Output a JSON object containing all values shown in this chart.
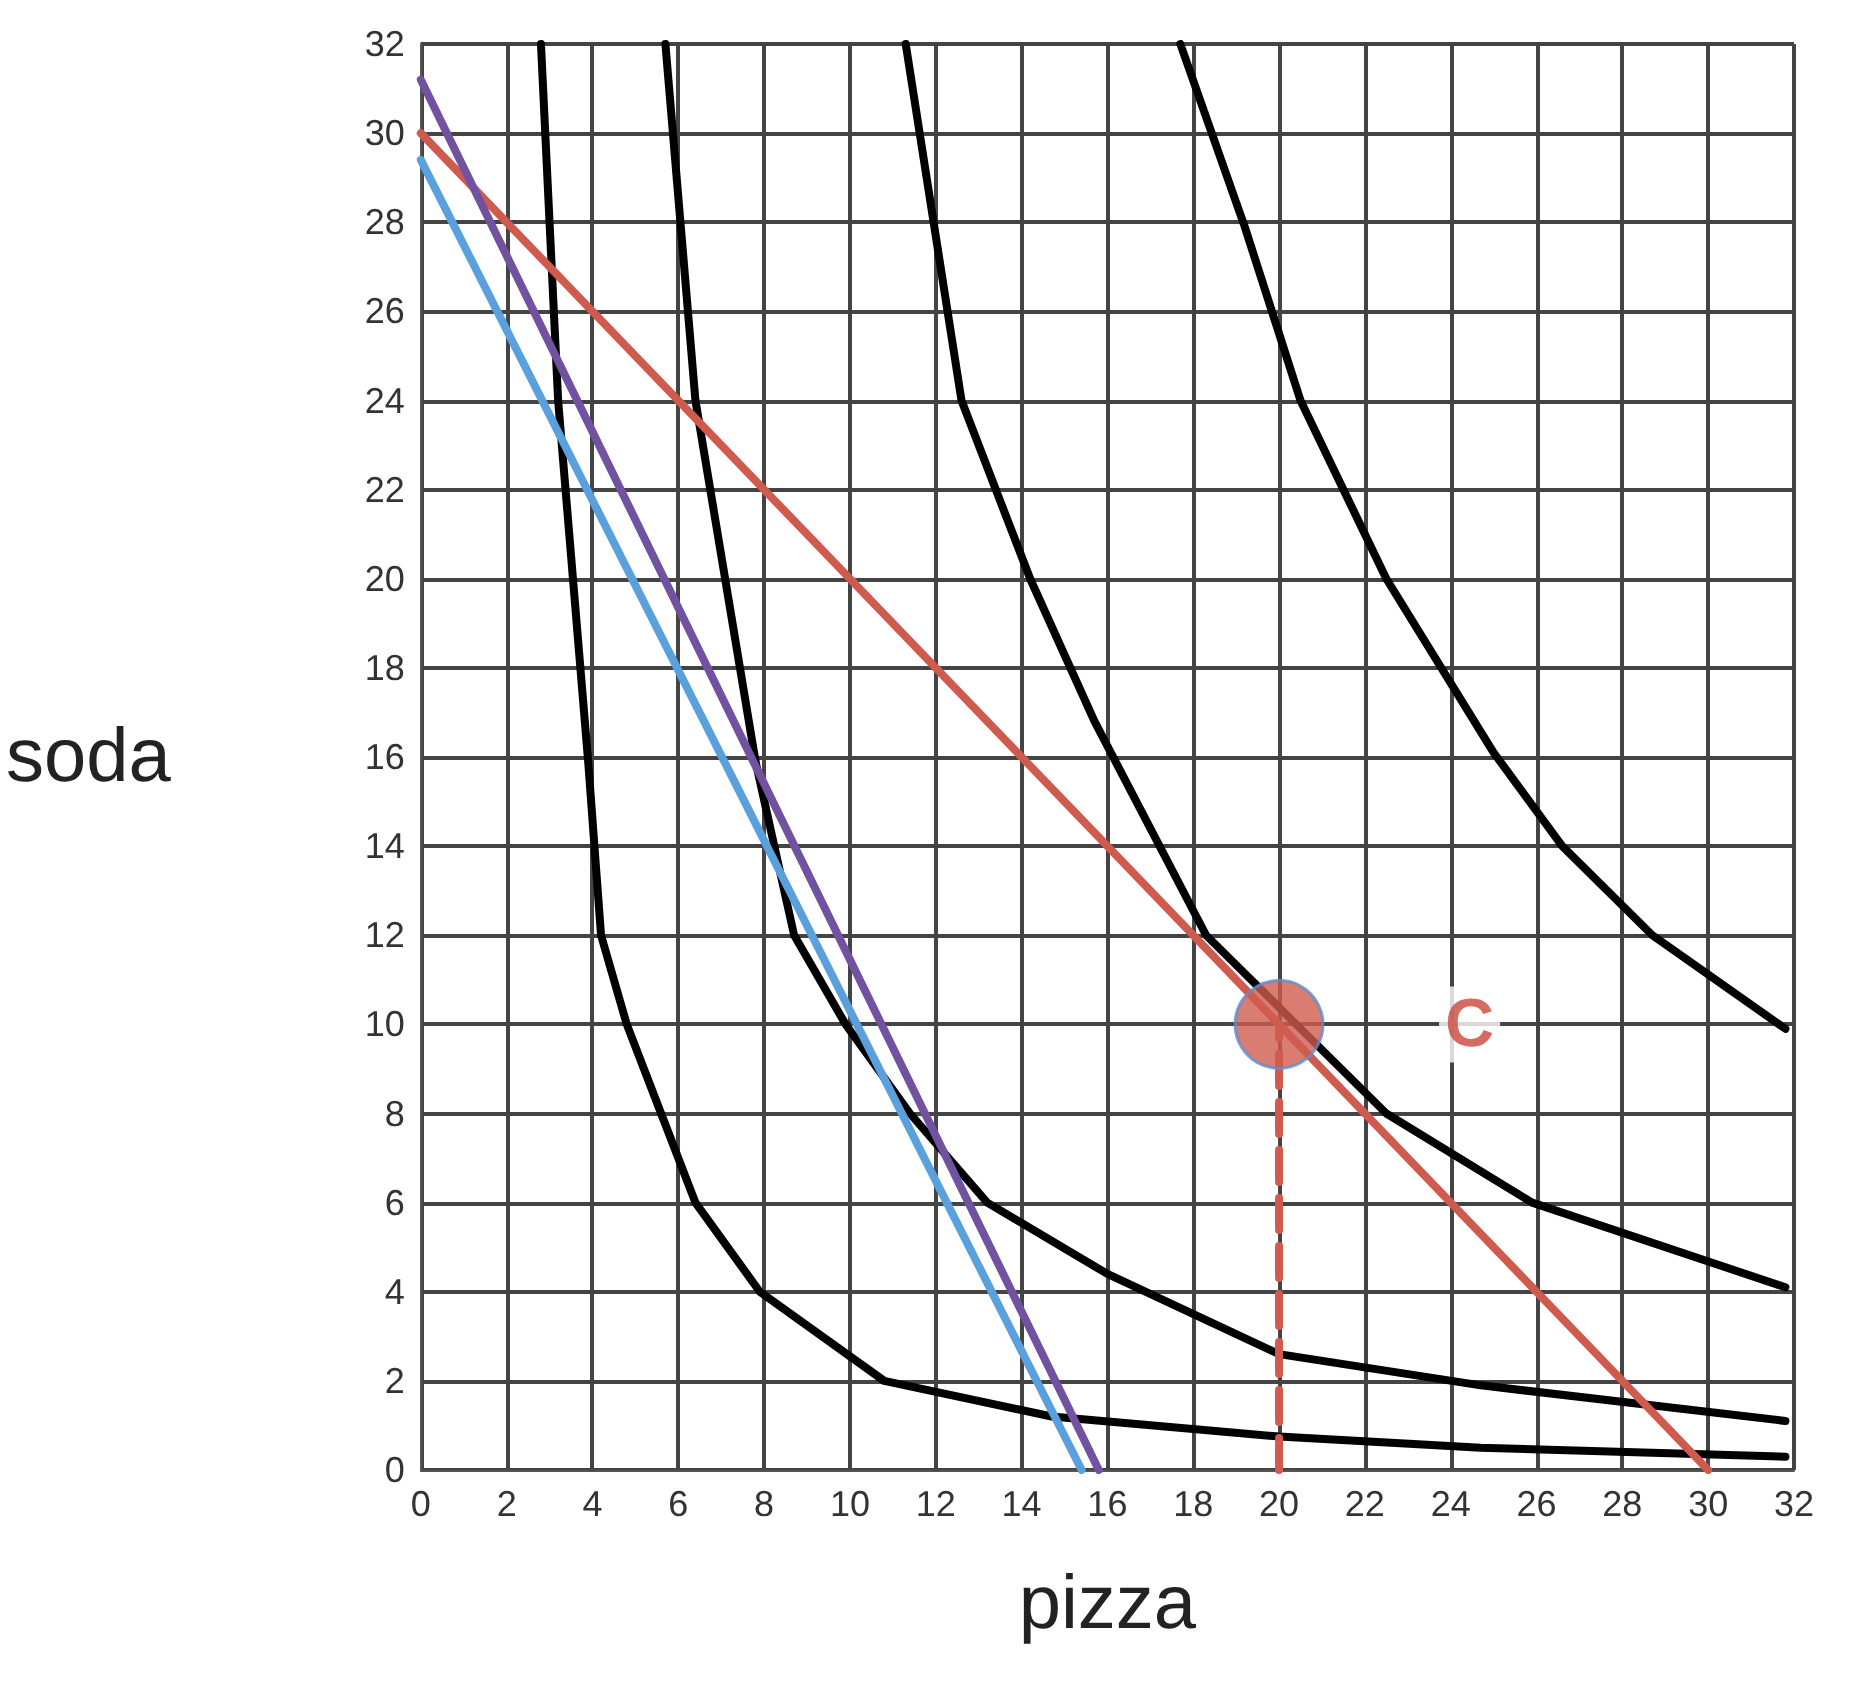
{
  "chart_data": {
    "type": "line",
    "xlabel": "pizza",
    "ylabel": "soda",
    "xlim": [
      0,
      32
    ],
    "ylim": [
      0,
      32
    ],
    "xticks": [
      0,
      2,
      4,
      6,
      8,
      10,
      12,
      14,
      16,
      18,
      20,
      22,
      24,
      26,
      28,
      30,
      32
    ],
    "yticks": [
      0,
      2,
      4,
      6,
      8,
      10,
      12,
      14,
      16,
      18,
      20,
      22,
      24,
      26,
      28,
      30,
      32
    ],
    "grid": true,
    "marker": "none",
    "line_style": "solid",
    "series": [
      {
        "color": "#000000",
        "x": [
          2.8,
          3.2,
          3.9,
          4.2,
          4.8,
          5.6,
          6.4,
          7.9,
          10.8,
          14.7,
          20.0,
          24.7,
          31.8
        ],
        "values": [
          32,
          24,
          15.9,
          12,
          10,
          8,
          6,
          4,
          2,
          1.2,
          0.75,
          0.5,
          0.3
        ]
      },
      {
        "color": "#000000",
        "x": [
          5.7,
          6.4,
          7.8,
          8.7,
          9.9,
          11.4,
          13.2,
          16.0,
          20.0,
          24.7,
          31.8
        ],
        "values": [
          32,
          24,
          15.9,
          12,
          10,
          8,
          6,
          4.4,
          2.6,
          1.9,
          1.1
        ]
      },
      {
        "color": "#000000",
        "x": [
          11.3,
          12.6,
          14.2,
          15.7,
          18.3,
          22.5,
          25.9,
          31.8
        ],
        "values": [
          32,
          24,
          20,
          16.8,
          12,
          8,
          6,
          4.1
        ]
      },
      {
        "color": "#000000",
        "x": [
          17.7,
          19.2,
          20.5,
          22.5,
          25.0,
          26.6,
          28.7,
          31.8
        ],
        "values": [
          32,
          27.9,
          24,
          20,
          16.1,
          14,
          12,
          9.9
        ]
      },
      {
        "color": "#cf5b4f",
        "x": [
          0,
          30
        ],
        "values": [
          30,
          0
        ]
      },
      {
        "color": "#7052a0",
        "x": [
          0,
          15.8
        ],
        "values": [
          31.2,
          0
        ]
      },
      {
        "color": "#5aa0dc",
        "x": [
          0,
          15.4
        ],
        "values": [
          29.4,
          0
        ]
      },
      {
        "color": "#cf5b4f",
        "x": [
          20,
          20
        ],
        "values": [
          0,
          10
        ],
        "line_style": "dashed"
      },
      {
        "type": "scatter",
        "marker": "circle",
        "color": "#cf5b4f",
        "x": [
          20
        ],
        "values": [
          10
        ]
      }
    ],
    "annotations": [
      {
        "text": "C",
        "x": 20,
        "y": 10
      }
    ]
  }
}
